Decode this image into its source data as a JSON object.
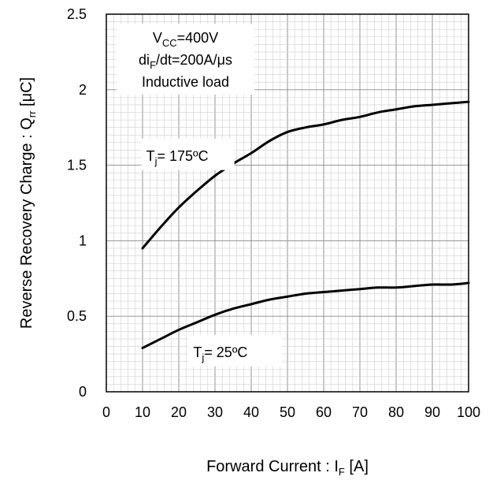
{
  "chart_data": {
    "type": "line",
    "title": "",
    "xlabel": {
      "main": "Forward Current : I",
      "sub": "F",
      "unit": " [A]"
    },
    "ylabel": {
      "main": "Reverse Recovery Charge : Q",
      "sub": "rr",
      "unit": " [μC]"
    },
    "xlim": [
      0,
      100
    ],
    "ylim": [
      0,
      2.5
    ],
    "xticks": [
      "0",
      "10",
      "20",
      "30",
      "40",
      "50",
      "60",
      "70",
      "80",
      "90",
      "100"
    ],
    "yticks": [
      "0",
      "0.5",
      "1",
      "1.5",
      "2",
      "2.5"
    ],
    "grid": true,
    "series": [
      {
        "name": "Tj= 175ºC",
        "x": [
          10,
          15,
          20,
          25,
          30,
          35,
          40,
          45,
          50,
          55,
          60,
          65,
          70,
          75,
          80,
          85,
          90,
          95,
          100
        ],
        "y": [
          0.95,
          1.09,
          1.22,
          1.33,
          1.43,
          1.51,
          1.58,
          1.66,
          1.72,
          1.75,
          1.77,
          1.8,
          1.82,
          1.85,
          1.87,
          1.89,
          1.9,
          1.91,
          1.92
        ]
      },
      {
        "name": "Tj= 25ºC",
        "x": [
          10,
          15,
          20,
          25,
          30,
          35,
          40,
          45,
          50,
          55,
          60,
          65,
          70,
          75,
          80,
          85,
          90,
          95,
          100
        ],
        "y": [
          0.29,
          0.35,
          0.41,
          0.46,
          0.51,
          0.55,
          0.58,
          0.61,
          0.63,
          0.65,
          0.66,
          0.67,
          0.68,
          0.69,
          0.69,
          0.7,
          0.71,
          0.71,
          0.72
        ]
      }
    ],
    "annotations": {
      "conditions": [
        {
          "main": "V",
          "sub": "CC",
          "rest": "=400V"
        },
        {
          "main": "di",
          "sub": "F",
          "rest": "/dt=200A/μs"
        },
        {
          "main": "Inductive load",
          "sub": "",
          "rest": ""
        }
      ],
      "labels": [
        {
          "main": "T",
          "sub": "j",
          "rest": "= 175ºC",
          "at": [
            11,
            1.52
          ]
        },
        {
          "main": "T",
          "sub": "j",
          "rest": "= 25ºC",
          "at": [
            24,
            0.22
          ]
        }
      ]
    }
  }
}
